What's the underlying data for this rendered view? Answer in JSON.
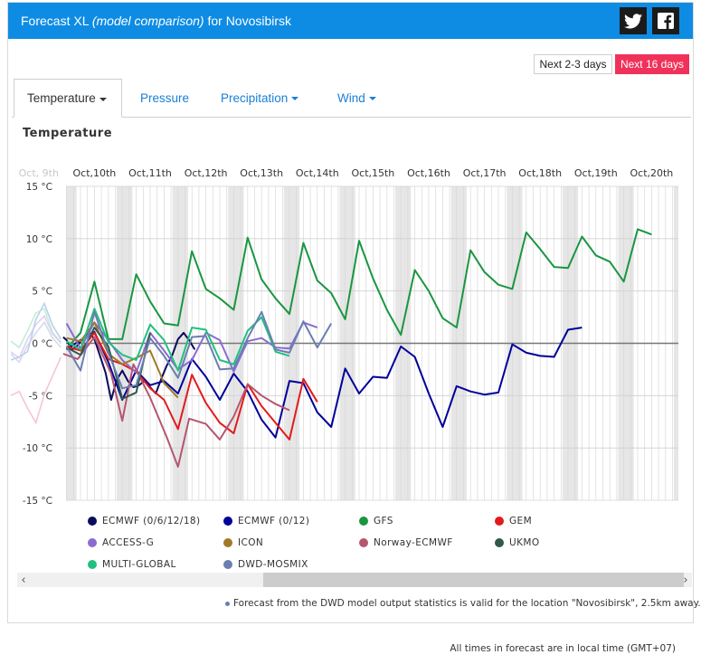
{
  "header": {
    "title_main": "Forecast XL",
    "title_italic": "(model comparison)",
    "title_rest": "for Novosibirsk"
  },
  "social": {
    "twitter_icon": "twitter-icon",
    "facebook_icon": "facebook-icon"
  },
  "range_buttons": {
    "short": "Next 2-3 days",
    "long": "Next 16 days"
  },
  "tabs": [
    {
      "label": "Temperature",
      "active": true
    },
    {
      "label": "Pressure",
      "active": false
    },
    {
      "label": "Precipitation",
      "active": false
    },
    {
      "label": "Wind",
      "active": false
    }
  ],
  "colors": {
    "header": "#0e8ce4",
    "accent_red": "#f0325a",
    "tab_blue": "#1a7fd6"
  },
  "chart_data": {
    "type": "line",
    "title": "Temperature",
    "ylim": [
      -15,
      15
    ],
    "y_ticks": [
      "15 °C",
      "10 °C",
      "5 °C",
      "0 °C",
      "-5 °C",
      "-10 °C",
      "-15 °C"
    ],
    "y_tick_values": [
      15,
      10,
      5,
      0,
      -5,
      -10,
      -15
    ],
    "x_labels": [
      "Oct, 9th",
      "Oct,10th",
      "Oct,11th",
      "Oct,12th",
      "Oct,13th",
      "Oct,14th",
      "Oct,15th",
      "Oct,16th",
      "Oct,17th",
      "Oct,18th",
      "Oct,19th",
      "Oct,20th"
    ],
    "x_unit": "day index (0 = Oct 9th 00:00)",
    "grid": true,
    "legend_position": "bottom",
    "series": [
      {
        "name": "ECMWF (0/6/12/18)",
        "color": "#0a0a5e",
        "x": [
          0.94,
          1.0,
          1.1,
          1.2,
          1.3,
          1.4,
          1.5,
          1.6,
          1.7,
          1.8,
          1.9,
          2.0,
          2.1,
          2.2,
          2.3,
          2.4,
          2.5,
          2.6,
          2.7,
          2.8,
          2.9,
          3.0,
          3.1,
          3.2,
          3.3
        ],
        "y": [
          0.6,
          0.3,
          -0.6,
          -0.2,
          0.5,
          1.1,
          0.4,
          -1.2,
          -2.8,
          -5.4,
          -3.5,
          -2.6,
          -3.6,
          -4.2,
          -4.0,
          -3.6,
          -4.2,
          -4.8,
          -3.4,
          -2.1,
          -1.1,
          0.4,
          1.0,
          0.3,
          -0.6
        ]
      },
      {
        "name": "ECMWF (0/12)",
        "color": "#00009a",
        "x": [
          1.0,
          1.25,
          1.5,
          1.75,
          2.0,
          2.25,
          2.5,
          2.75,
          3.0,
          3.25,
          3.5,
          3.75,
          4.0,
          4.25,
          4.5,
          4.75,
          5.0,
          5.25,
          5.5,
          5.75,
          6.0,
          6.25,
          6.5,
          6.75,
          7.0,
          7.25,
          7.5,
          7.75,
          8.0,
          8.25,
          8.5,
          8.75,
          9.0,
          9.25,
          9.5,
          9.75,
          10.0,
          10.25,
          10.5
        ],
        "y": [
          -0.6,
          0.3,
          1.1,
          -1.8,
          -5.4,
          -2.6,
          -4.0,
          -3.6,
          -4.8,
          -1.5,
          -3.2,
          -5.4,
          -2.9,
          -4.6,
          -7.3,
          -9.0,
          -3.6,
          -3.8,
          -6.6,
          -8.0,
          -2.4,
          -4.8,
          -3.2,
          -3.3,
          -0.3,
          -1.3,
          -4.8,
          -8.0,
          -4.1,
          -4.6,
          -4.9,
          -4.7,
          -0.1,
          -0.9,
          -1.2,
          -1.3,
          1.3,
          1.5,
          null
        ]
      },
      {
        "name": "GFS",
        "color": "#1a9641",
        "x": [
          1.0,
          1.25,
          1.5,
          1.75,
          2.0,
          2.25,
          2.5,
          2.75,
          3.0,
          3.25,
          3.5,
          3.75,
          4.0,
          4.25,
          4.5,
          4.75,
          5.0,
          5.25,
          5.5,
          5.75,
          6.0,
          6.25,
          6.5,
          6.75,
          7.0,
          7.25,
          7.5,
          7.75,
          8.0,
          8.25,
          8.5,
          8.75,
          9.0,
          9.25,
          9.5,
          9.75,
          10.0,
          10.25,
          10.5,
          10.75,
          11.0,
          11.25,
          11.5
        ],
        "y": [
          -0.5,
          1.0,
          5.9,
          0.4,
          0.4,
          6.6,
          4.0,
          1.9,
          1.7,
          8.8,
          5.2,
          4.3,
          3.2,
          10.1,
          6.1,
          4.3,
          2.8,
          9.6,
          6.0,
          4.8,
          2.3,
          9.8,
          6.2,
          3.2,
          0.8,
          7.0,
          5.0,
          2.4,
          1.5,
          8.9,
          6.8,
          5.6,
          5.2,
          10.6,
          9.0,
          7.3,
          7.2,
          10.2,
          8.4,
          7.8,
          5.9,
          10.9,
          10.4
        ]
      },
      {
        "name": "GEM",
        "color": "#e31a1c",
        "x": [
          1.0,
          1.25,
          1.5,
          1.75,
          2.0,
          2.25,
          2.5,
          2.75,
          3.0,
          3.25,
          3.5,
          3.75,
          4.0,
          4.25,
          4.5,
          4.75,
          5.0,
          5.25,
          5.5
        ],
        "y": [
          -0.3,
          -0.7,
          1.0,
          -1.5,
          -2.0,
          -2.7,
          -4.3,
          -5.4,
          -8.2,
          -3.0,
          -5.7,
          -7.6,
          -8.6,
          -3.9,
          -6.0,
          -7.6,
          -9.2,
          -3.4,
          -5.6
        ]
      },
      {
        "name": "ACCESS-G",
        "color": "#8c6bd1",
        "x": [
          1.0,
          1.25,
          1.5,
          1.75,
          2.0,
          2.25,
          2.5,
          2.75,
          3.0,
          3.25,
          3.5,
          3.75,
          4.0,
          4.25,
          4.5,
          4.75,
          5.0,
          5.25,
          5.5
        ],
        "y": [
          1.9,
          -0.5,
          2.0,
          0.3,
          -1.6,
          -2.8,
          1.0,
          -0.7,
          -2.5,
          -1.6,
          1.0,
          0.3,
          -2.7,
          0.2,
          0.5,
          -0.4,
          -0.5,
          2.0,
          1.5
        ]
      },
      {
        "name": "ICON",
        "color": "#a07a2a",
        "x": [
          1.0,
          1.25,
          1.5,
          1.75,
          2.0,
          2.25,
          2.5,
          2.75,
          3.0
        ],
        "y": [
          0.5,
          0.2,
          2.0,
          -1.0,
          -2.0,
          -1.4,
          -0.7,
          -3.8,
          -5.2
        ]
      },
      {
        "name": "Norway-ECMWF",
        "color": "#b5566f",
        "x": [
          0.94,
          1.2,
          1.5,
          1.8,
          2.0,
          2.2,
          2.5,
          2.8,
          3.0,
          3.2,
          3.5,
          3.75,
          4.0,
          4.25,
          4.5,
          4.75,
          5.0,
          5.25,
          5.5
        ],
        "y": [
          -1.0,
          -1.5,
          0.6,
          -2.9,
          -7.4,
          -2.0,
          -5.2,
          -9.0,
          -11.8,
          -7.2,
          -7.7,
          -9.2,
          -7.0,
          -3.9,
          -5.0,
          -5.8,
          -6.4,
          null,
          null
        ]
      },
      {
        "name": "UKMO",
        "color": "#2f5a46",
        "x": [
          1.0,
          1.25,
          1.5,
          1.75,
          2.0,
          2.25,
          2.5
        ],
        "y": [
          -0.4,
          -1.1,
          1.5,
          -0.3,
          -5.3,
          -4.7,
          1.0
        ]
      },
      {
        "name": "MULTI-GLOBAL",
        "color": "#20c080",
        "x": [
          1.0,
          1.25,
          1.5,
          1.75,
          2.0,
          2.25,
          2.5,
          2.75,
          3.0,
          3.25,
          3.5,
          3.75,
          4.0,
          4.25,
          4.5,
          4.75,
          5.0,
          5.25,
          5.5
        ],
        "y": [
          0.2,
          -0.6,
          3.3,
          0.1,
          -1.1,
          -1.6,
          1.8,
          0.3,
          -2.6,
          1.5,
          1.3,
          -1.6,
          -2.0,
          1.2,
          2.5,
          -0.8,
          -1.2,
          null,
          null
        ]
      },
      {
        "name": "DWD-MOSMIX",
        "color": "#6a7fb0",
        "x": [
          1.0,
          1.25,
          1.5,
          1.75,
          2.0,
          2.25,
          2.5,
          2.75,
          3.0,
          3.25,
          3.5,
          3.75,
          4.0,
          4.25,
          4.5,
          4.75,
          5.0,
          5.25,
          5.5,
          5.75
        ],
        "y": [
          -0.3,
          -2.6,
          3.0,
          -0.9,
          -4.3,
          -4.0,
          0.5,
          -1.2,
          -3.3,
          0.6,
          0.7,
          -2.5,
          -2.4,
          0.5,
          3.0,
          -0.6,
          -0.9,
          2.1,
          -0.4,
          1.9
        ]
      }
    ],
    "history_x": [
      0.0,
      0.15,
      0.3,
      0.45,
      0.6,
      0.75,
      0.9
    ],
    "history_series": [
      {
        "color": "#a8c4e8",
        "y": [
          -1.6,
          -1.3,
          -0.8,
          2.3,
          3.8,
          1.7,
          0.4
        ]
      },
      {
        "color": "#f4b8c2",
        "y": [
          -5.0,
          -4.6,
          -6.2,
          -7.6,
          -4.9,
          -3.1,
          -1.3
        ]
      },
      {
        "color": "#b7e8c8",
        "y": [
          0.2,
          -0.4,
          1.2,
          2.9,
          3.3,
          1.0,
          0.1
        ]
      },
      {
        "color": "#d6c6f0",
        "y": [
          -0.8,
          -1.4,
          0.4,
          1.8,
          2.6,
          0.9,
          0.0
        ]
      },
      {
        "color": "#c7d2e6",
        "y": [
          -1.0,
          -1.8,
          -0.2,
          1.0,
          2.0,
          0.5,
          -0.4
        ]
      }
    ]
  },
  "footnote": "Forecast from the DWD model output statistics is valid for the location \"Novosibirsk\", 2.5km away.",
  "timezone_note": "All times in forecast are in local time (GMT+07)",
  "scroll": {
    "left_arrow": "‹",
    "right_arrow": "›"
  }
}
